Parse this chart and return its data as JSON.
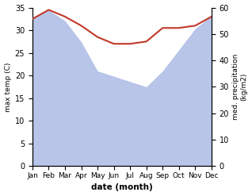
{
  "months": [
    "Jan",
    "Feb",
    "Mar",
    "Apr",
    "May",
    "Jun",
    "Jul",
    "Aug",
    "Sep",
    "Oct",
    "Nov",
    "Dec"
  ],
  "temp": [
    32.5,
    34.5,
    33.0,
    31.0,
    28.5,
    27.0,
    27.0,
    27.5,
    30.5,
    30.5,
    31.0,
    33.0
  ],
  "precip": [
    56,
    59,
    55,
    47,
    36,
    34,
    32,
    30,
    36,
    44,
    52,
    57
  ],
  "temp_color": "#c0392b",
  "precip_fill_color": "#b8c4e8",
  "temp_ylim": [
    0,
    35
  ],
  "precip_ylim": [
    0,
    60
  ],
  "xlabel": "date (month)",
  "ylabel_left": "max temp (C)",
  "ylabel_right": "med. precipitation\n(kg/m2)",
  "bg_color": "#ffffff"
}
